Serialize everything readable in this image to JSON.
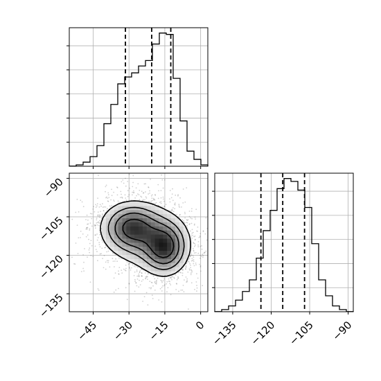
{
  "chart_data": {
    "type": "corner",
    "title": "",
    "parameters": [
      {
        "name": "",
        "range": [
          -55,
          3
        ],
        "ticks": [
          -45,
          -30,
          -15,
          0
        ],
        "tick_labels": [
          "−45",
          "−30",
          "−15",
          "0"
        ],
        "quantiles": [
          -31.5,
          -20.5,
          -12.5
        ],
        "histogram": {
          "bin_edges": [
            -55,
            -52.1,
            -49.2,
            -46.3,
            -43.4,
            -40.5,
            -37.6,
            -34.7,
            -31.8,
            -28.9,
            -26.0,
            -23.1,
            -20.2,
            -17.3,
            -14.4,
            -11.5,
            -8.6,
            -5.7,
            -2.8,
            0.1,
            3
          ],
          "counts": [
            0.1,
            1,
            3,
            7,
            15,
            31,
            45,
            60,
            65,
            68,
            73,
            77,
            89,
            97,
            96,
            64,
            33,
            11,
            5,
            1
          ]
        }
      },
      {
        "name": "",
        "range": [
          -142,
          -88
        ],
        "ticks": [
          -135,
          -120,
          -105,
          -90
        ],
        "tick_labels": [
          "−135",
          "−120",
          "−105",
          "−90"
        ],
        "quantiles": [
          -124,
          -115.5,
          -107
        ],
        "histogram": {
          "bin_edges": [
            -142,
            -139.3,
            -136.6,
            -133.9,
            -131.2,
            -128.5,
            -125.8,
            -123.1,
            -120.4,
            -117.7,
            -115.0,
            -112.3,
            -109.6,
            -106.9,
            -104.2,
            -101.5,
            -98.8,
            -96.1,
            -93.4,
            -90.7,
            -88
          ],
          "counts": [
            0.1,
            1.5,
            4,
            8,
            14,
            22,
            37,
            56,
            70,
            85,
            92,
            90,
            84,
            72,
            47,
            22,
            11,
            4,
            1.5,
            0.1
          ]
        }
      }
    ],
    "joint_density": {
      "blobs": [
        {
          "x": -29,
          "y": -109,
          "sx": 6.5,
          "sy": 5,
          "w": 0.9
        },
        {
          "x": -15,
          "y": -117,
          "sx": 5,
          "sy": 5.5,
          "w": 1.0
        },
        {
          "x": -22,
          "y": -113,
          "sx": 9,
          "sy": 7,
          "w": 0.45
        }
      ],
      "contour_levels": [
        0.12,
        0.28,
        0.48,
        0.72
      ]
    }
  }
}
